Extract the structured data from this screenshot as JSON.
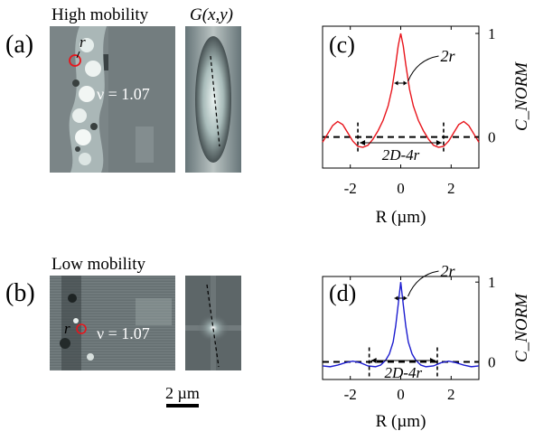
{
  "figure": {
    "scale_bar_label": "2 µm",
    "top_row": {
      "panel_a_label": "(a)",
      "title": "High mobility",
      "corr_map_title": "G(x,y)",
      "circle_label": "r",
      "filling_text": "ν = 1.07"
    },
    "bottom_row": {
      "panel_b_label": "(b)",
      "title": "Low mobility",
      "circle_label": "r",
      "filling_text": "ν = 1.07"
    }
  },
  "chart_data": [
    {
      "panel": "(c)",
      "type": "line",
      "line_color": "#e8141b",
      "xlabel": "R (µm)",
      "ylabel": "C_NORM",
      "xlim": [
        -3.1,
        3.1
      ],
      "ylim": [
        -0.3,
        1.07
      ],
      "xticks": [
        "-2",
        "0",
        "2"
      ],
      "yticks": [
        "1",
        "0"
      ],
      "annotation_peak": "2r",
      "annotation_span": "2D-4r",
      "dashed_markers_x": [
        -1.7,
        1.7
      ],
      "x": [
        -3.1,
        -2.9,
        -2.7,
        -2.5,
        -2.3,
        -2.1,
        -1.9,
        -1.7,
        -1.5,
        -1.3,
        -1.1,
        -0.9,
        -0.7,
        -0.5,
        -0.35,
        -0.2,
        -0.1,
        0.0,
        0.1,
        0.2,
        0.35,
        0.5,
        0.7,
        0.9,
        1.1,
        1.3,
        1.5,
        1.7,
        1.9,
        2.1,
        2.3,
        2.5,
        2.7,
        2.9,
        3.1
      ],
      "y": [
        -0.05,
        0.03,
        0.11,
        0.15,
        0.12,
        0.04,
        -0.04,
        -0.09,
        -0.1,
        -0.08,
        -0.02,
        0.06,
        0.16,
        0.3,
        0.46,
        0.7,
        0.88,
        1.0,
        0.88,
        0.7,
        0.46,
        0.3,
        0.16,
        0.06,
        -0.02,
        -0.08,
        -0.1,
        -0.09,
        -0.04,
        0.04,
        0.12,
        0.15,
        0.11,
        0.03,
        -0.05
      ]
    },
    {
      "panel": "(d)",
      "type": "line",
      "line_color": "#1c1ccf",
      "xlabel": "R (µm)",
      "ylabel": "C_NORM",
      "xlim": [
        -3.1,
        3.1
      ],
      "ylim": [
        -0.22,
        1.07
      ],
      "xticks": [
        "-2",
        "0",
        "2"
      ],
      "yticks": [
        "1",
        "0"
      ],
      "annotation_peak": "2r",
      "annotation_span": "2D-4r",
      "dashed_markers_x": [
        -1.25,
        1.45
      ],
      "x": [
        -3.1,
        -2.8,
        -2.5,
        -2.2,
        -1.9,
        -1.6,
        -1.3,
        -1.0,
        -0.8,
        -0.6,
        -0.45,
        -0.3,
        -0.2,
        -0.1,
        0.0,
        0.1,
        0.2,
        0.3,
        0.45,
        0.6,
        0.8,
        1.0,
        1.3,
        1.6,
        1.9,
        2.2,
        2.5,
        2.8,
        3.1
      ],
      "y": [
        -0.05,
        -0.06,
        -0.04,
        -0.01,
        0.01,
        -0.01,
        -0.05,
        -0.06,
        -0.04,
        0.02,
        0.1,
        0.25,
        0.45,
        0.72,
        1.0,
        0.72,
        0.45,
        0.25,
        0.1,
        0.02,
        -0.04,
        -0.06,
        -0.05,
        -0.01,
        0.01,
        -0.01,
        -0.04,
        -0.06,
        -0.05
      ]
    }
  ]
}
